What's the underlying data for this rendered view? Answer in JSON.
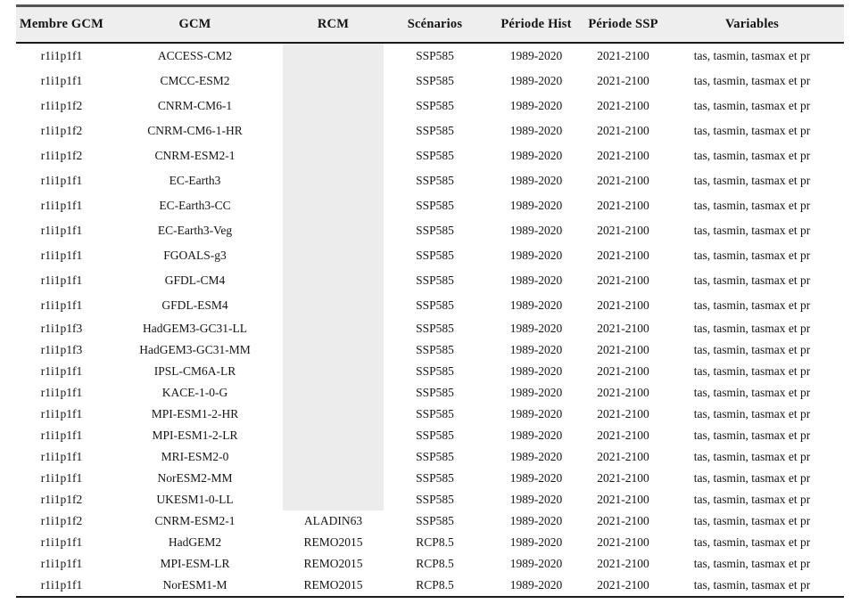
{
  "colors": {
    "header_bg": "#eeeeee",
    "rcm_shade": "#ececec",
    "rule_top": "#555555",
    "rule_dark": "#1a1a1a"
  },
  "table": {
    "columns": [
      {
        "key": "membre",
        "label": "Membre GCM"
      },
      {
        "key": "gcm",
        "label": "GCM"
      },
      {
        "key": "rcm",
        "label": "RCM"
      },
      {
        "key": "scenario",
        "label": "Scénarios"
      },
      {
        "key": "periode_hist",
        "label": "Période Hist"
      },
      {
        "key": "periode_ssp",
        "label": "Période SSP"
      },
      {
        "key": "variables",
        "label": "Variables"
      }
    ],
    "rows": [
      {
        "membre": "r1i1p1f1",
        "gcm": "ACCESS-CM2",
        "rcm": "",
        "scenario": "SSP585",
        "periode_hist": "1989-2020",
        "periode_ssp": "2021-2100",
        "variables": "tas, tasmin, tasmax et pr"
      },
      {
        "membre": "r1i1p1f1",
        "gcm": "CMCC-ESM2",
        "rcm": "",
        "scenario": "SSP585",
        "periode_hist": "1989-2020",
        "periode_ssp": "2021-2100",
        "variables": "tas, tasmin, tasmax et pr"
      },
      {
        "membre": "r1i1p1f2",
        "gcm": "CNRM-CM6-1",
        "rcm": "",
        "scenario": "SSP585",
        "periode_hist": "1989-2020",
        "periode_ssp": "2021-2100",
        "variables": "tas, tasmin, tasmax et pr"
      },
      {
        "membre": "r1i1p1f2",
        "gcm": "CNRM-CM6-1-HR",
        "rcm": "",
        "scenario": "SSP585",
        "periode_hist": "1989-2020",
        "periode_ssp": "2021-2100",
        "variables": "tas, tasmin, tasmax et pr"
      },
      {
        "membre": "r1i1p1f2",
        "gcm": "CNRM-ESM2-1",
        "rcm": "",
        "scenario": "SSP585",
        "periode_hist": "1989-2020",
        "periode_ssp": "2021-2100",
        "variables": "tas, tasmin, tasmax et pr"
      },
      {
        "membre": "r1i1p1f1",
        "gcm": "EC-Earth3",
        "rcm": "",
        "scenario": "SSP585",
        "periode_hist": "1989-2020",
        "periode_ssp": "2021-2100",
        "variables": "tas, tasmin, tasmax et pr"
      },
      {
        "membre": "r1i1p1f1",
        "gcm": "EC-Earth3-CC",
        "rcm": "",
        "scenario": "SSP585",
        "periode_hist": "1989-2020",
        "periode_ssp": "2021-2100",
        "variables": "tas, tasmin, tasmax et pr"
      },
      {
        "membre": "r1i1p1f1",
        "gcm": "EC-Earth3-Veg",
        "rcm": "",
        "scenario": "SSP585",
        "periode_hist": "1989-2020",
        "periode_ssp": "2021-2100",
        "variables": "tas, tasmin, tasmax et pr"
      },
      {
        "membre": "r1i1p1f1",
        "gcm": "FGOALS-g3",
        "rcm": "",
        "scenario": "SSP585",
        "periode_hist": "1989-2020",
        "periode_ssp": "2021-2100",
        "variables": "tas, tasmin, tasmax et pr"
      },
      {
        "membre": "r1i1p1f1",
        "gcm": "GFDL-CM4",
        "rcm": "",
        "scenario": "SSP585",
        "periode_hist": "1989-2020",
        "periode_ssp": "2021-2100",
        "variables": "tas, tasmin, tasmax et pr"
      },
      {
        "membre": "r1i1p1f1",
        "gcm": "GFDL-ESM4",
        "rcm": "",
        "scenario": "SSP585",
        "periode_hist": "1989-2020",
        "periode_ssp": "2021-2100",
        "variables": "tas, tasmin, tasmax et pr"
      },
      {
        "membre": "r1i1p1f3",
        "gcm": "HadGEM3-GC31-LL",
        "rcm": "",
        "scenario": "SSP585",
        "periode_hist": "1989-2020",
        "periode_ssp": "2021-2100",
        "variables": "tas, tasmin, tasmax et pr"
      },
      {
        "membre": "r1i1p1f3",
        "gcm": "HadGEM3-GC31-MM",
        "rcm": "",
        "scenario": "SSP585",
        "periode_hist": "1989-2020",
        "periode_ssp": "2021-2100",
        "variables": "tas, tasmin, tasmax et pr"
      },
      {
        "membre": "r1i1p1f1",
        "gcm": "IPSL-CM6A-LR",
        "rcm": "",
        "scenario": "SSP585",
        "periode_hist": "1989-2020",
        "periode_ssp": "2021-2100",
        "variables": "tas, tasmin, tasmax et pr"
      },
      {
        "membre": "r1i1p1f1",
        "gcm": "KACE-1-0-G",
        "rcm": "",
        "scenario": "SSP585",
        "periode_hist": "1989-2020",
        "periode_ssp": "2021-2100",
        "variables": "tas, tasmin, tasmax et pr"
      },
      {
        "membre": "r1i1p1f1",
        "gcm": "MPI-ESM1-2-HR",
        "rcm": "",
        "scenario": "SSP585",
        "periode_hist": "1989-2020",
        "periode_ssp": "2021-2100",
        "variables": "tas, tasmin, tasmax et pr"
      },
      {
        "membre": "r1i1p1f1",
        "gcm": "MPI-ESM1-2-LR",
        "rcm": "",
        "scenario": "SSP585",
        "periode_hist": "1989-2020",
        "periode_ssp": "2021-2100",
        "variables": "tas, tasmin, tasmax et pr"
      },
      {
        "membre": "r1i1p1f1",
        "gcm": "MRI-ESM2-0",
        "rcm": "",
        "scenario": "SSP585",
        "periode_hist": "1989-2020",
        "periode_ssp": "2021-2100",
        "variables": "tas, tasmin, tasmax et pr"
      },
      {
        "membre": "r1i1p1f1",
        "gcm": "NorESM2-MM",
        "rcm": "",
        "scenario": "SSP585",
        "periode_hist": "1989-2020",
        "periode_ssp": "2021-2100",
        "variables": "tas, tasmin, tasmax et pr"
      },
      {
        "membre": "r1i1p1f2",
        "gcm": "UKESM1-0-LL",
        "rcm": "",
        "scenario": "SSP585",
        "periode_hist": "1989-2020",
        "periode_ssp": "2021-2100",
        "variables": "tas, tasmin, tasmax et pr"
      },
      {
        "membre": "r1i1p1f2",
        "gcm": "CNRM-ESM2-1",
        "rcm": "ALADIN63",
        "scenario": "SSP585",
        "periode_hist": "1989-2020",
        "periode_ssp": "2021-2100",
        "variables": "tas, tasmin, tasmax et pr"
      },
      {
        "membre": "r1i1p1f1",
        "gcm": "HadGEM2",
        "rcm": "REMO2015",
        "scenario": "RCP8.5",
        "periode_hist": "1989-2020",
        "periode_ssp": "2021-2100",
        "variables": "tas, tasmin, tasmax et pr"
      },
      {
        "membre": "r1i1p1f1",
        "gcm": "MPI-ESM-LR",
        "rcm": "REMO2015",
        "scenario": "RCP8.5",
        "periode_hist": "1989-2020",
        "periode_ssp": "2021-2100",
        "variables": "tas, tasmin, tasmax et pr"
      },
      {
        "membre": "r1i1p1f1",
        "gcm": "NorESM1-M",
        "rcm": "REMO2015",
        "scenario": "RCP8.5",
        "periode_hist": "1989-2020",
        "periode_ssp": "2021-2100",
        "variables": "tas, tasmin, tasmax et pr"
      }
    ]
  }
}
